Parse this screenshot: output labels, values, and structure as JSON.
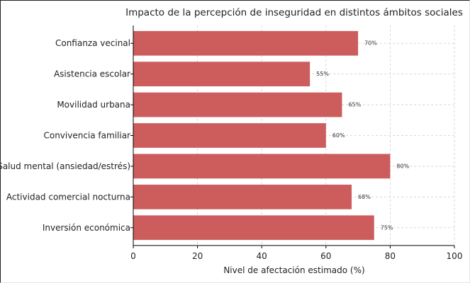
{
  "chart_data": {
    "type": "bar",
    "orientation": "horizontal",
    "title": "Impacto de la percepción de inseguridad en distintos ámbitos sociales",
    "xlabel": "Nivel de afectación estimado (%)",
    "ylabel": "",
    "xlim": [
      0,
      100
    ],
    "xticks": [
      0,
      20,
      40,
      60,
      80,
      100
    ],
    "grid": true,
    "categories": [
      "Confianza vecinal",
      "Asistencia escolar",
      "Movilidad urbana",
      "Convivencia familiar",
      "Salud mental (ansiedad/estrés)",
      "Actividad comercial nocturna",
      "Inversión económica"
    ],
    "values": [
      70,
      55,
      65,
      60,
      80,
      68,
      75
    ],
    "data_labels": [
      "70%",
      "55%",
      "65%",
      "60%",
      "80%",
      "68%",
      "75%"
    ],
    "bar_color": "#cd5c5c",
    "grid_color": "#cccccc",
    "axis_color": "#000000"
  }
}
